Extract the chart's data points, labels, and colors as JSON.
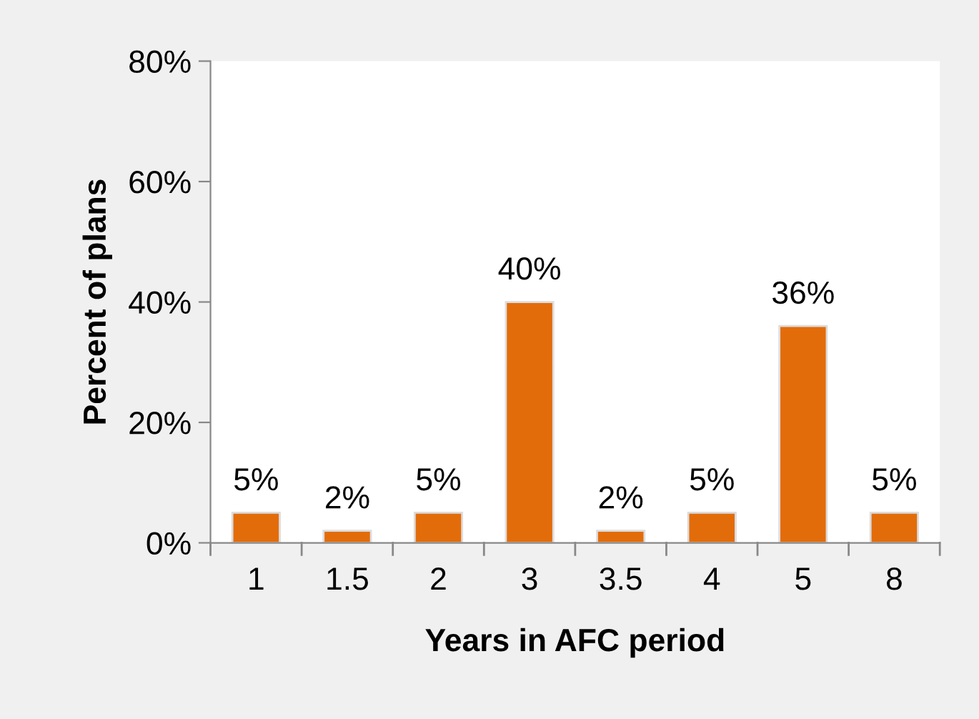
{
  "chart_data": {
    "type": "bar",
    "xlabel": "Years in AFC period",
    "ylabel": "Percent of plans",
    "categories": [
      "1",
      "1.5",
      "2",
      "3",
      "3.5",
      "4",
      "5",
      "8"
    ],
    "values": [
      5,
      2,
      5,
      40,
      2,
      5,
      36,
      5
    ],
    "color": "#e36c0a",
    "ylim": [
      0,
      80
    ],
    "yticks": [
      {
        "value": 0,
        "label": "0%"
      },
      {
        "value": 20,
        "label": "20%"
      },
      {
        "value": 40,
        "label": "40%"
      },
      {
        "value": 60,
        "label": "60%"
      },
      {
        "value": 80,
        "label": "80%"
      }
    ],
    "value_labels": [
      "5%",
      "2%",
      "5%",
      "40%",
      "2%",
      "5%",
      "36%",
      "5%"
    ],
    "grid": false,
    "legend": false
  }
}
